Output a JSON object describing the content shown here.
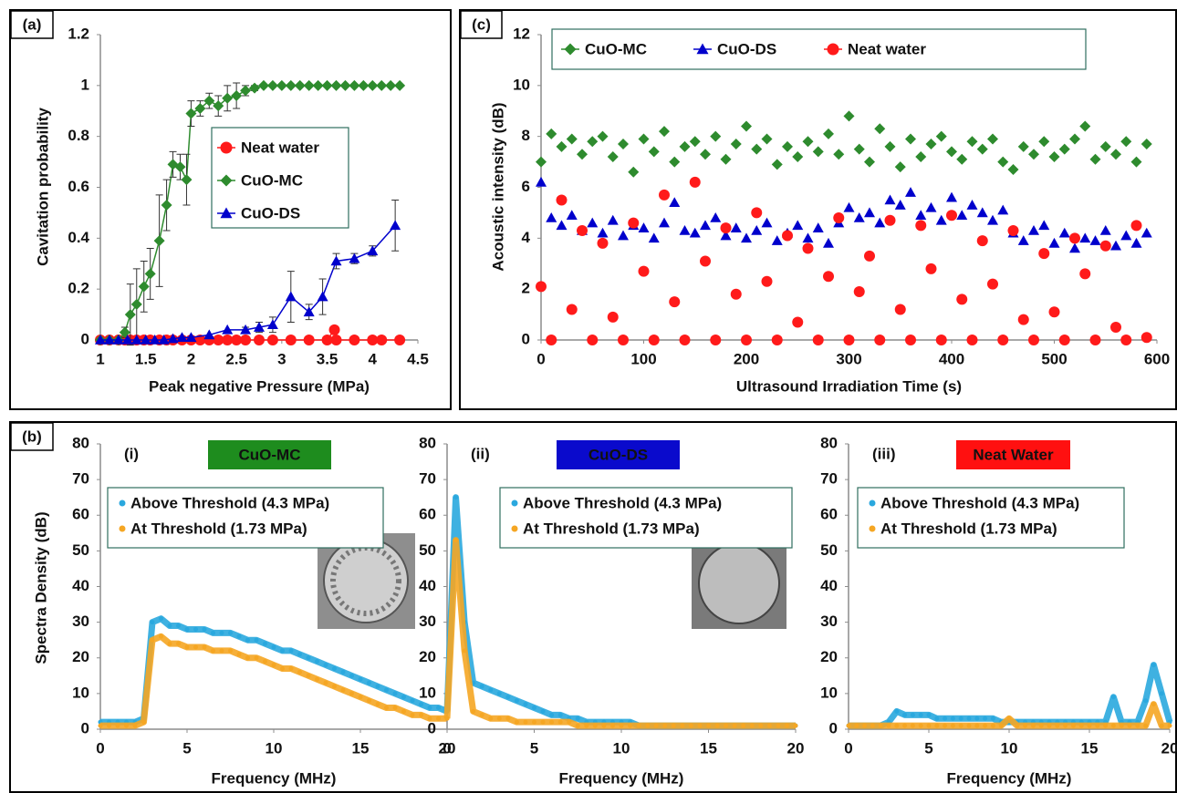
{
  "chart_data": [
    {
      "type": "line",
      "panel_label": "(a)",
      "x_label": "Peak negative Pressure (MPa)",
      "y_label": "Cavitation probability",
      "xlim": [
        1,
        4.5
      ],
      "xticks": [
        1,
        1.5,
        2,
        2.5,
        3,
        3.5,
        4,
        4.5
      ],
      "ylim": [
        0,
        1.2
      ],
      "yticks": [
        0,
        0.2,
        0.4,
        0.6,
        0.8,
        1,
        1.2
      ],
      "legend": "center-right",
      "series": [
        {
          "name": "Neat water",
          "color": "#ff1a1a",
          "marker": "circle",
          "x": [
            1.0,
            1.1,
            1.2,
            1.27,
            1.33,
            1.4,
            1.48,
            1.55,
            1.65,
            1.73,
            1.8,
            1.9,
            2.0,
            2.1,
            2.2,
            2.3,
            2.4,
            2.5,
            2.6,
            2.75,
            2.9,
            3.1,
            3.3,
            3.5,
            3.58,
            3.6,
            3.8,
            4.0,
            4.1,
            4.3
          ],
          "values": [
            0,
            0,
            0,
            0,
            0,
            0,
            0,
            0,
            0,
            0,
            0,
            0,
            0,
            0,
            0,
            0,
            0,
            0,
            0,
            0,
            0,
            0,
            0,
            0,
            0.04,
            0,
            0,
            0,
            0,
            0
          ]
        },
        {
          "name": "CuO-MC",
          "color": "#2e8b2e",
          "marker": "diamond",
          "x": [
            1.0,
            1.1,
            1.2,
            1.27,
            1.33,
            1.4,
            1.48,
            1.55,
            1.65,
            1.73,
            1.8,
            1.88,
            1.95,
            2.0,
            2.1,
            2.2,
            2.3,
            2.4,
            2.5,
            2.6,
            2.7,
            2.8,
            2.9,
            3.0,
            3.1,
            3.2,
            3.3,
            3.4,
            3.5,
            3.6,
            3.7,
            3.8,
            3.9,
            4.0,
            4.1,
            4.2,
            4.3
          ],
          "values": [
            0,
            0,
            0,
            0.03,
            0.1,
            0.14,
            0.21,
            0.26,
            0.39,
            0.53,
            0.69,
            0.68,
            0.63,
            0.89,
            0.91,
            0.94,
            0.92,
            0.95,
            0.96,
            0.98,
            0.99,
            1,
            1,
            1,
            1,
            1,
            1,
            1,
            1,
            1,
            1,
            1,
            1,
            1,
            1,
            1,
            1
          ],
          "errors": [
            0,
            0,
            0,
            0.02,
            0.12,
            0.14,
            0.1,
            0.1,
            0.18,
            0.1,
            0.05,
            0.05,
            0.1,
            0.05,
            0.03,
            0.03,
            0.04,
            0.05,
            0.05,
            0.02,
            0.01,
            0,
            0,
            0,
            0,
            0,
            0,
            0,
            0,
            0,
            0,
            0,
            0,
            0,
            0,
            0,
            0
          ]
        },
        {
          "name": "CuO-DS",
          "color": "#0000cc",
          "marker": "triangle",
          "x": [
            1.0,
            1.1,
            1.2,
            1.3,
            1.4,
            1.5,
            1.6,
            1.7,
            1.8,
            1.9,
            2.0,
            2.2,
            2.4,
            2.6,
            2.75,
            2.9,
            3.1,
            3.3,
            3.45,
            3.6,
            3.8,
            4.0,
            4.25
          ],
          "values": [
            0,
            0,
            0,
            0,
            0,
            0,
            0,
            0,
            0.005,
            0.01,
            0.01,
            0.02,
            0.04,
            0.04,
            0.05,
            0.06,
            0.17,
            0.11,
            0.17,
            0.31,
            0.32,
            0.35,
            0.45
          ],
          "errors": [
            0,
            0,
            0,
            0,
            0,
            0,
            0,
            0,
            0,
            0,
            0,
            0,
            0,
            0.01,
            0.02,
            0.03,
            0.1,
            0.03,
            0.07,
            0.03,
            0.02,
            0.02,
            0.1
          ]
        }
      ]
    },
    {
      "type": "scatter",
      "panel_label": "(c)",
      "x_label": "Ultrasound Irradiation Time (s)",
      "y_label": "Acoustic intensity (dB)",
      "xlim": [
        0,
        600
      ],
      "xticks": [
        0,
        100,
        200,
        300,
        400,
        500,
        600
      ],
      "ylim": [
        0,
        12
      ],
      "yticks": [
        0,
        2,
        4,
        6,
        8,
        10,
        12
      ],
      "legend": "top",
      "x": [
        0,
        10,
        20,
        30,
        40,
        50,
        60,
        70,
        80,
        90,
        100,
        110,
        120,
        130,
        140,
        150,
        160,
        170,
        180,
        190,
        200,
        210,
        220,
        230,
        240,
        250,
        260,
        270,
        280,
        290,
        300,
        310,
        320,
        330,
        340,
        350,
        360,
        370,
        380,
        390,
        400,
        410,
        420,
        430,
        440,
        450,
        460,
        470,
        480,
        490,
        500,
        510,
        520,
        530,
        540,
        550,
        560,
        570,
        580,
        590
      ],
      "series": [
        {
          "name": "CuO-MC",
          "color": "#2e8b2e",
          "marker": "diamond",
          "values": [
            7.0,
            8.1,
            7.6,
            7.9,
            7.3,
            7.8,
            8.0,
            7.2,
            7.7,
            6.6,
            7.9,
            7.4,
            8.2,
            7.0,
            7.6,
            7.8,
            7.3,
            8.0,
            7.1,
            7.7,
            8.4,
            7.5,
            7.9,
            6.9,
            7.6,
            7.2,
            7.8,
            7.4,
            8.1,
            7.3,
            8.8,
            7.5,
            7.0,
            8.3,
            7.6,
            6.8,
            7.9,
            7.2,
            7.7,
            8.0,
            7.4,
            7.1,
            7.8,
            7.5,
            7.9,
            7.0,
            6.7,
            7.6,
            7.3,
            7.8,
            7.2,
            7.5,
            7.9,
            8.4,
            7.1,
            7.6,
            7.3,
            7.8,
            7.0,
            7.7
          ]
        },
        {
          "name": "CuO-DS",
          "color": "#0000cc",
          "marker": "triangle",
          "values": [
            6.2,
            4.8,
            4.5,
            4.9,
            4.3,
            4.6,
            4.2,
            4.7,
            4.1,
            4.5,
            4.4,
            4.0,
            4.6,
            5.4,
            4.3,
            4.2,
            4.5,
            4.8,
            4.1,
            4.4,
            4.0,
            4.3,
            4.6,
            3.9,
            4.2,
            4.5,
            4.0,
            4.4,
            3.8,
            4.6,
            5.2,
            4.8,
            5.0,
            4.6,
            5.5,
            5.3,
            5.8,
            4.9,
            5.2,
            4.7,
            5.6,
            4.9,
            5.3,
            5.0,
            4.7,
            5.1,
            4.2,
            3.9,
            4.3,
            4.5,
            3.8,
            4.2,
            3.6,
            4.0,
            3.9,
            4.3,
            3.7,
            4.1,
            3.8,
            4.2
          ]
        },
        {
          "name": "Neat water",
          "color": "#ff1a1a",
          "marker": "circle",
          "values": [
            2.1,
            0.0,
            5.5,
            1.2,
            4.3,
            0.0,
            3.8,
            0.9,
            0.0,
            4.6,
            2.7,
            0.0,
            5.7,
            1.5,
            0.0,
            6.2,
            3.1,
            0.0,
            4.4,
            1.8,
            0.0,
            5.0,
            2.3,
            0.0,
            4.1,
            0.7,
            3.6,
            0.0,
            2.5,
            4.8,
            0.0,
            1.9,
            3.3,
            0.0,
            4.7,
            1.2,
            0.0,
            4.5,
            2.8,
            0.0,
            4.9,
            1.6,
            0.0,
            3.9,
            2.2,
            0.0,
            4.3,
            0.8,
            0.0,
            3.4,
            1.1,
            0.0,
            4.0,
            2.6,
            0.0,
            3.7,
            0.5,
            0.0,
            4.5,
            0.1
          ]
        }
      ]
    },
    {
      "type": "line",
      "panel_label": "(b)",
      "sub_label": "(i)",
      "badge": "CuO-MC",
      "badge_color": "#1e8c1e",
      "x_label": "Frequency (MHz)",
      "y_label": "Spectra Density (dB)",
      "xlim": [
        0,
        20
      ],
      "xticks": [
        0,
        5,
        10,
        15,
        20
      ],
      "ylim": [
        0,
        80
      ],
      "yticks": [
        0,
        10,
        20,
        30,
        40,
        50,
        60,
        70,
        80
      ],
      "legend": "top-left",
      "x": [
        0,
        0.5,
        1,
        1.5,
        2,
        2.5,
        3,
        3.5,
        4,
        4.5,
        5,
        5.5,
        6,
        6.5,
        7,
        7.5,
        8,
        8.5,
        9,
        9.5,
        10,
        10.5,
        11,
        11.5,
        12,
        12.5,
        13,
        13.5,
        14,
        14.5,
        15,
        15.5,
        16,
        16.5,
        17,
        17.5,
        18,
        18.5,
        19,
        19.5,
        20
      ],
      "series": [
        {
          "name": "Above Threshold (4.3 MPa)",
          "color": "#2aa8de",
          "marker": "circle",
          "values": [
            2,
            2,
            2,
            2,
            2,
            3,
            30,
            31,
            29,
            29,
            28,
            28,
            28,
            27,
            27,
            27,
            26,
            25,
            25,
            24,
            23,
            22,
            22,
            21,
            20,
            19,
            18,
            17,
            16,
            15,
            14,
            13,
            12,
            11,
            10,
            9,
            8,
            7,
            6,
            6,
            5
          ]
        },
        {
          "name": "At Threshold (1.73 MPa)",
          "color": "#f5a623",
          "marker": "circle",
          "values": [
            1,
            1,
            1,
            1,
            1,
            2,
            25,
            26,
            24,
            24,
            23,
            23,
            23,
            22,
            22,
            22,
            21,
            20,
            20,
            19,
            18,
            17,
            17,
            16,
            15,
            14,
            13,
            12,
            11,
            10,
            9,
            8,
            7,
            6,
            6,
            5,
            4,
            4,
            3,
            3,
            3
          ]
        }
      ]
    },
    {
      "type": "line",
      "sub_label": "(ii)",
      "badge": "CuO-DS",
      "badge_color": "#0a0acc",
      "x_label": "Frequency (MHz)",
      "xlim": [
        0,
        20
      ],
      "xticks": [
        0,
        5,
        10,
        15,
        20
      ],
      "ylim": [
        0,
        80
      ],
      "yticks": [
        0,
        10,
        20,
        30,
        40,
        50,
        60,
        70,
        80
      ],
      "legend": "top-left",
      "x": [
        0,
        0.5,
        1,
        1.5,
        2,
        2.5,
        3,
        3.5,
        4,
        4.5,
        5,
        5.5,
        6,
        6.5,
        7,
        7.5,
        8,
        8.5,
        9,
        9.5,
        10,
        10.5,
        11,
        11.5,
        12,
        12.5,
        13,
        13.5,
        14,
        14.5,
        15,
        15.5,
        16,
        16.5,
        17,
        17.5,
        18,
        18.5,
        19,
        19.5,
        20
      ],
      "series": [
        {
          "name": "Above Threshold (4.3 MPa)",
          "color": "#2aa8de",
          "marker": "circle",
          "values": [
            5,
            65,
            30,
            13,
            12,
            11,
            10,
            9,
            8,
            7,
            6,
            5,
            4,
            4,
            3,
            3,
            2,
            2,
            2,
            2,
            2,
            2,
            1,
            1,
            1,
            1,
            1,
            1,
            1,
            1,
            1,
            1,
            1,
            1,
            1,
            1,
            1,
            1,
            1,
            1,
            1
          ]
        },
        {
          "name": "At Threshold (1.73 MPa)",
          "color": "#f5a623",
          "marker": "circle",
          "values": [
            3,
            53,
            22,
            5,
            4,
            3,
            3,
            3,
            2,
            2,
            2,
            2,
            2,
            2,
            2,
            1,
            1,
            1,
            1,
            1,
            1,
            1,
            1,
            1,
            1,
            1,
            1,
            1,
            1,
            1,
            1,
            1,
            1,
            1,
            1,
            1,
            1,
            1,
            1,
            1,
            1
          ]
        }
      ]
    },
    {
      "type": "line",
      "sub_label": "(iii)",
      "badge": "Neat Water",
      "badge_color": "#ff1010",
      "x_label": "Frequency (MHz)",
      "xlim": [
        0,
        20
      ],
      "xticks": [
        0,
        5,
        10,
        15,
        20
      ],
      "ylim": [
        0,
        80
      ],
      "yticks": [
        0,
        10,
        20,
        30,
        40,
        50,
        60,
        70,
        80
      ],
      "legend": "top-left",
      "x": [
        0,
        0.5,
        1,
        1.5,
        2,
        2.5,
        3,
        3.5,
        4,
        4.5,
        5,
        5.5,
        6,
        6.5,
        7,
        7.5,
        8,
        8.5,
        9,
        9.5,
        10,
        10.5,
        11,
        11.5,
        12,
        12.5,
        13,
        13.5,
        14,
        14.5,
        15,
        15.5,
        16,
        16.5,
        17,
        17.5,
        18,
        18.5,
        19,
        19.5,
        20
      ],
      "series": [
        {
          "name": "Above Threshold (4.3 MPa)",
          "color": "#2aa8de",
          "marker": "circle",
          "values": [
            1,
            1,
            1,
            1,
            1,
            2,
            5,
            4,
            4,
            4,
            4,
            3,
            3,
            3,
            3,
            3,
            3,
            3,
            3,
            2,
            2,
            2,
            2,
            2,
            2,
            2,
            2,
            2,
            2,
            2,
            2,
            2,
            2,
            9,
            2,
            2,
            2,
            8,
            18,
            10,
            2
          ]
        },
        {
          "name": "At Threshold (1.73 MPa)",
          "color": "#f5a623",
          "marker": "circle",
          "values": [
            1,
            1,
            1,
            1,
            1,
            1,
            1,
            1,
            1,
            1,
            1,
            1,
            1,
            1,
            1,
            1,
            1,
            1,
            1,
            1,
            3,
            1,
            1,
            1,
            1,
            1,
            1,
            1,
            1,
            1,
            1,
            1,
            1,
            1,
            1,
            1,
            1,
            1,
            7,
            1,
            1
          ]
        }
      ]
    }
  ]
}
